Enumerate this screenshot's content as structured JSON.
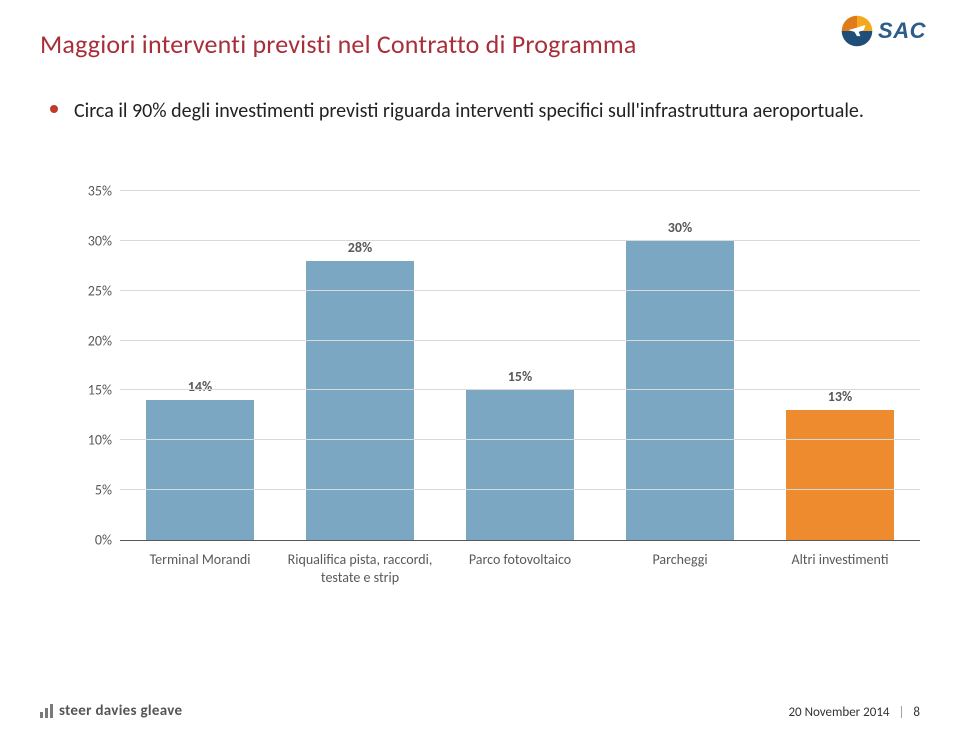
{
  "title": {
    "text": "Maggiori interventi previsti nel Contratto di Programma",
    "color": "#a82f3a"
  },
  "logo": {
    "text": "SAC"
  },
  "bullet": {
    "text": "Circa il 90% degli investimenti previsti riguarda interventi specifici sull'infrastruttura aeroportuale."
  },
  "chart": {
    "type": "bar",
    "ylim": [
      0,
      35
    ],
    "ytick_step": 5,
    "y_format": "percent",
    "grid_color": "#d9d9d9",
    "axis_color": "#595959",
    "axis_fontsize": 14,
    "label_fontsize": 14,
    "label_fontweight": 700,
    "background_color": "#ffffff",
    "bar_width_ratio": 0.68,
    "categories": [
      "Terminal Morandi",
      "Riqualifica pista, raccordi, testate e strip",
      "Parco fotovoltaico",
      "Parcheggi",
      "Altri investimenti"
    ],
    "values": [
      14,
      28,
      15,
      30,
      13
    ],
    "value_labels": [
      "14%",
      "28%",
      "15%",
      "30%",
      "13%"
    ],
    "bar_colors": [
      "#7ba7c2",
      "#7ba7c2",
      "#7ba7c2",
      "#7ba7c2",
      "#ed8b2e"
    ]
  },
  "footer": {
    "brand": "steer davies gleave",
    "date": "20 November 2014",
    "page": "8"
  }
}
